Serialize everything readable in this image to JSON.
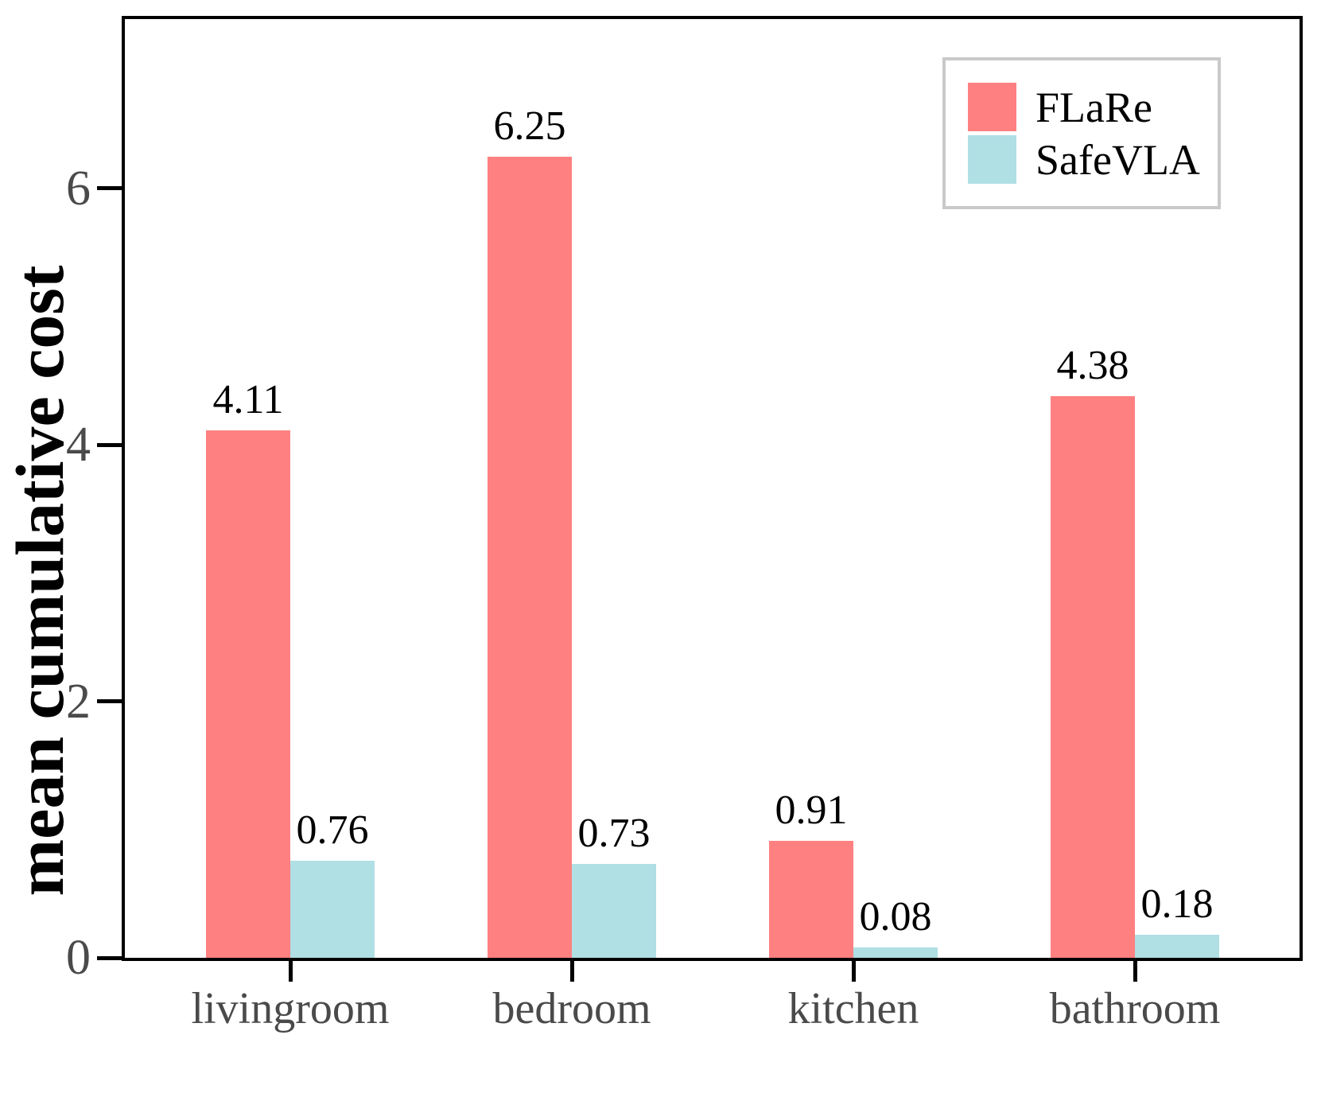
{
  "chart_data": {
    "type": "bar",
    "title": "",
    "xlabel": "",
    "ylabel": "mean cumulative cost",
    "categories": [
      "livingroom",
      "bedroom",
      "kitchen",
      "bathroom"
    ],
    "series": [
      {
        "name": "FLaRe",
        "color": "#FF8080",
        "values": [
          4.11,
          6.25,
          0.91,
          4.38
        ],
        "value_labels": [
          "4.11",
          "6.25",
          "0.91",
          "4.38"
        ]
      },
      {
        "name": "SafeVLA",
        "color": "#B0DFE4",
        "values": [
          0.76,
          0.73,
          0.08,
          0.18
        ],
        "value_labels": [
          "0.76",
          "0.73",
          "0.08",
          "0.18"
        ]
      }
    ],
    "ylim": [
      0,
      7.32
    ],
    "yticks": [
      0,
      2,
      4,
      6
    ],
    "grid": false,
    "legend_position": "upper right"
  },
  "colors": {
    "axis": "#000000",
    "tick_label": "#4a4a4a",
    "value_label": "#000000",
    "legend_border": "#c9c9c9",
    "background": "#ffffff"
  }
}
